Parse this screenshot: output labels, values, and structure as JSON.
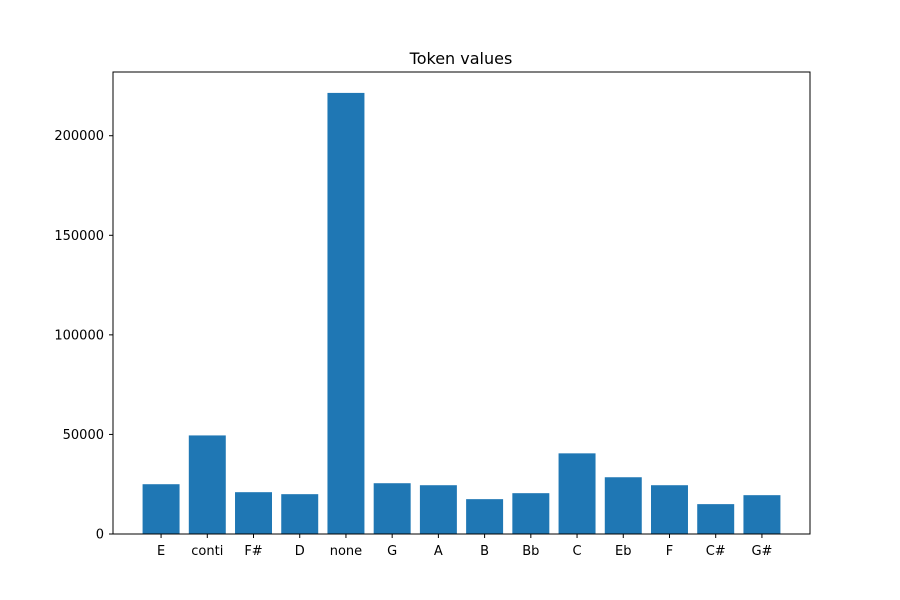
{
  "chart_data": {
    "type": "bar",
    "title": "Token values",
    "xlabel": "",
    "ylabel": "",
    "categories": [
      "E",
      "conti",
      "F#",
      "D",
      "none",
      "G",
      "A",
      "B",
      "Bb",
      "C",
      "Eb",
      "F",
      "C#",
      "G#"
    ],
    "values": [
      25000,
      49500,
      21000,
      20000,
      221500,
      25500,
      24500,
      17500,
      20500,
      40500,
      28500,
      24500,
      15000,
      19500
    ],
    "ylim": [
      0,
      232000
    ],
    "yticks": [
      0,
      50000,
      100000,
      150000,
      200000
    ],
    "ytick_labels": [
      "0",
      "50000",
      "100000",
      "150000",
      "200000"
    ],
    "grid": false,
    "bar_color": "#1f77b4"
  }
}
